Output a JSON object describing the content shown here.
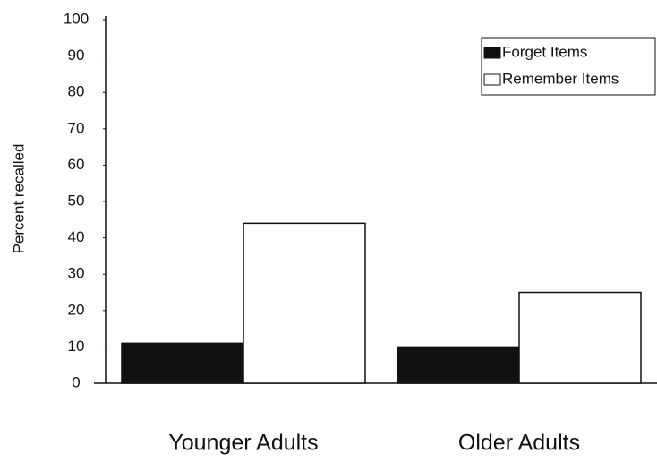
{
  "chart_data": {
    "type": "bar",
    "y_label": "Percent recalled",
    "categories": [
      "Younger Adults",
      "Older Adults"
    ],
    "series": [
      {
        "name": "Forget Items",
        "color": "#111111",
        "values": [
          11,
          10
        ]
      },
      {
        "name": "Remember Items",
        "color": "#ffffff",
        "values": [
          44,
          25
        ]
      }
    ],
    "ylim": [
      0,
      100
    ],
    "yticks": [
      0,
      10,
      20,
      30,
      40,
      50,
      60,
      70,
      80,
      90,
      100
    ],
    "grid": false,
    "legend": "upper right"
  }
}
